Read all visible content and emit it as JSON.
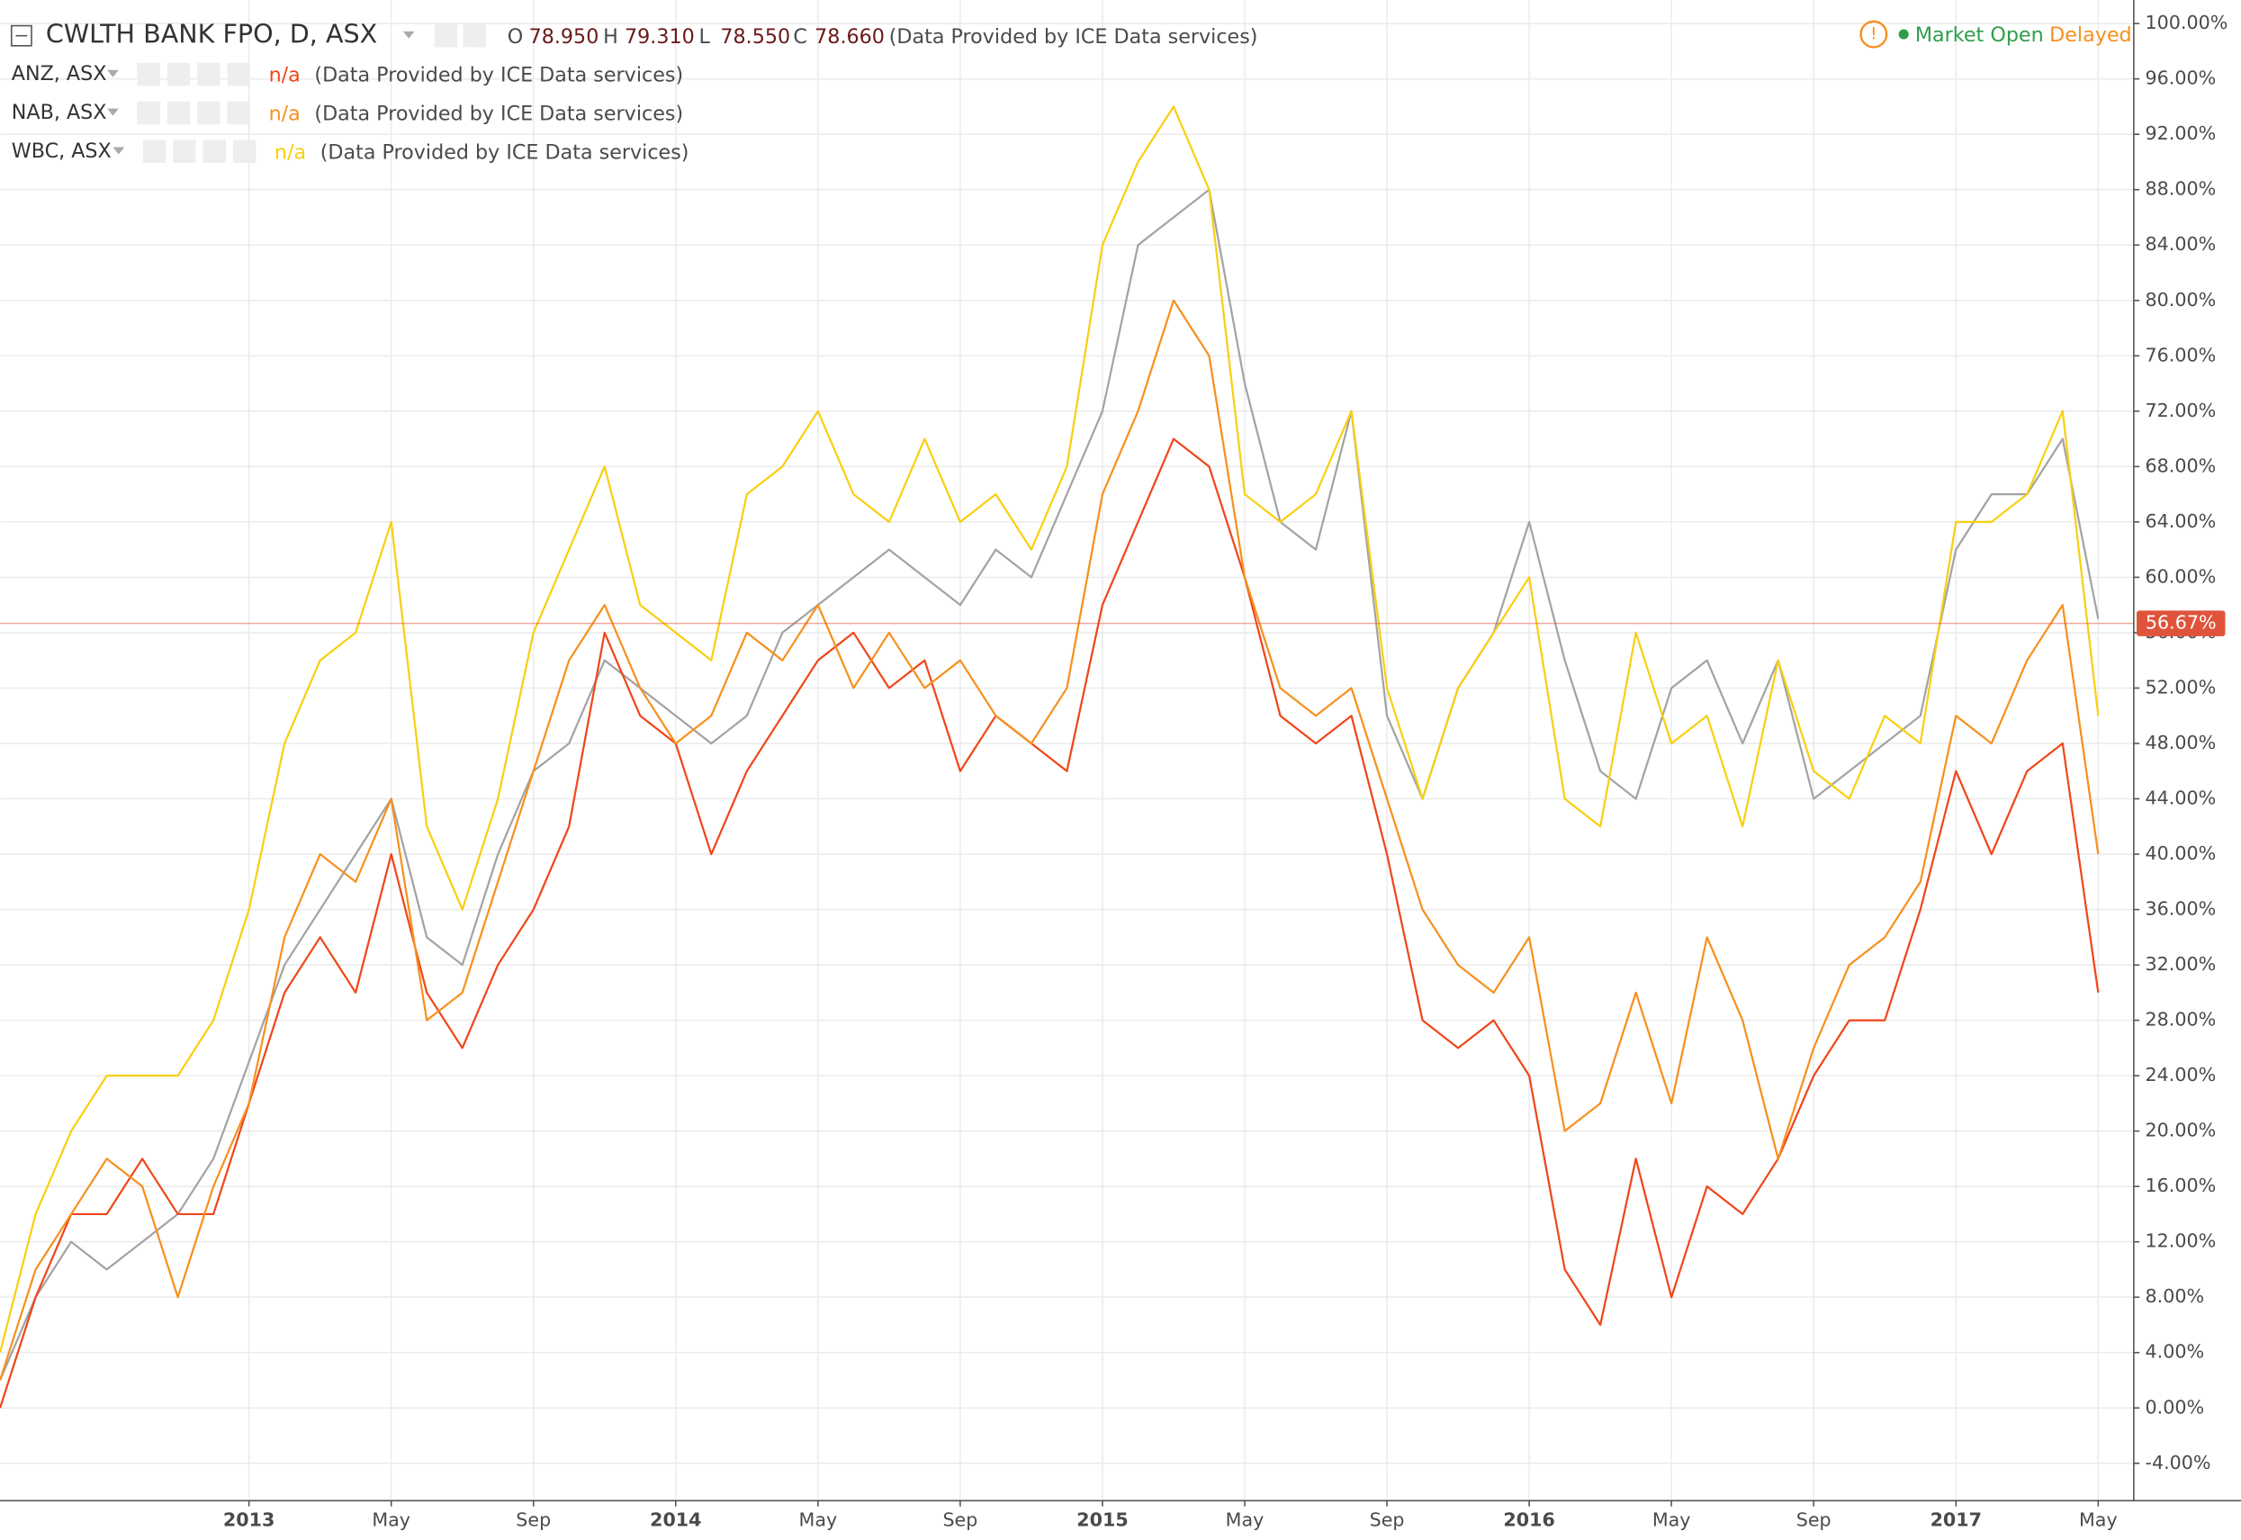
{
  "chart_data": {
    "type": "line",
    "ohlc": [
      {
        "name": "O",
        "value": 78.95,
        "label": "78.950"
      },
      {
        "name": "H",
        "value": 79.31,
        "label": "79.310"
      },
      {
        "name": "L",
        "value": 78.55,
        "label": "78.550"
      },
      {
        "name": "C",
        "value": 78.66,
        "label": "78.660"
      }
    ],
    "market": {
      "icon": "!",
      "state": "Market Open",
      "delay": "Delayed"
    },
    "x": [
      "2012-06",
      "2012-07",
      "2012-08",
      "2012-09",
      "2012-10",
      "2012-11",
      "2012-12",
      "2013-01",
      "2013-02",
      "2013-03",
      "2013-04",
      "2013-05",
      "2013-06",
      "2013-07",
      "2013-08",
      "2013-09",
      "2013-10",
      "2013-11",
      "2013-12",
      "2014-01",
      "2014-02",
      "2014-03",
      "2014-04",
      "2014-05",
      "2014-06",
      "2014-07",
      "2014-08",
      "2014-09",
      "2014-10",
      "2014-11",
      "2014-12",
      "2015-01",
      "2015-02",
      "2015-03",
      "2015-04",
      "2015-05",
      "2015-06",
      "2015-07",
      "2015-08",
      "2015-09",
      "2015-10",
      "2015-11",
      "2015-12",
      "2016-01",
      "2016-02",
      "2016-03",
      "2016-04",
      "2016-05",
      "2016-06",
      "2016-07",
      "2016-08",
      "2016-09",
      "2016-10",
      "2016-11",
      "2016-12",
      "2017-01",
      "2017-02",
      "2017-03",
      "2017-04",
      "2017-05"
    ],
    "series": [
      {
        "name": "CWLTH BANK FPO, D, ASX",
        "source": "(Data Provided by ICE Data services)",
        "color": "#a3a3a3",
        "values": [
          2,
          8,
          12,
          10,
          12,
          14,
          18,
          25,
          32,
          36,
          40,
          44,
          34,
          32,
          40,
          46,
          48,
          54,
          52,
          50,
          48,
          50,
          56,
          58,
          60,
          62,
          60,
          58,
          62,
          60,
          66,
          72,
          84,
          86,
          88,
          74,
          64,
          62,
          72,
          50,
          44,
          52,
          56,
          64,
          54,
          46,
          44,
          52,
          54,
          48,
          54,
          44,
          46,
          48,
          50,
          62,
          66,
          66,
          70,
          57
        ]
      },
      {
        "name": "ANZ, ASX",
        "status": "n/a",
        "source": "(Data Provided by ICE Data services)",
        "color": "#f0461a",
        "values": [
          0,
          8,
          14,
          14,
          18,
          14,
          14,
          22,
          30,
          34,
          30,
          40,
          30,
          26,
          32,
          36,
          42,
          56,
          50,
          48,
          40,
          46,
          50,
          54,
          56,
          52,
          54,
          46,
          50,
          48,
          46,
          58,
          64,
          70,
          68,
          60,
          50,
          48,
          50,
          40,
          28,
          26,
          28,
          24,
          10,
          6,
          18,
          8,
          16,
          14,
          18,
          24,
          28,
          28,
          36,
          46,
          40,
          46,
          48,
          30
        ]
      },
      {
        "name": "NAB, ASX",
        "status": "n/a",
        "source": "(Data Provided by ICE Data services)",
        "color": "#f7901e",
        "values": [
          2,
          10,
          14,
          18,
          16,
          8,
          16,
          22,
          34,
          40,
          38,
          44,
          28,
          30,
          38,
          46,
          54,
          58,
          52,
          48,
          50,
          56,
          54,
          58,
          52,
          56,
          52,
          54,
          50,
          48,
          52,
          66,
          72,
          80,
          76,
          60,
          52,
          50,
          52,
          44,
          36,
          32,
          30,
          34,
          20,
          22,
          30,
          22,
          34,
          28,
          18,
          26,
          32,
          34,
          38,
          50,
          48,
          54,
          58,
          40
        ]
      },
      {
        "name": "WBC, ASX",
        "status": "n/a",
        "source": "(Data Provided by ICE Data services)",
        "color": "#f9cf10",
        "values": [
          4,
          14,
          20,
          24,
          24,
          24,
          28,
          36,
          48,
          54,
          56,
          64,
          42,
          36,
          44,
          56,
          62,
          68,
          58,
          56,
          54,
          66,
          68,
          72,
          66,
          64,
          70,
          64,
          66,
          62,
          68,
          84,
          90,
          94,
          88,
          66,
          64,
          66,
          72,
          52,
          44,
          52,
          56,
          60,
          44,
          42,
          56,
          48,
          50,
          42,
          54,
          46,
          44,
          50,
          48,
          64,
          64,
          66,
          72,
          50
        ]
      }
    ],
    "price_line": {
      "value": 56.67,
      "label": "56.67%",
      "color": "#e0533b"
    },
    "xlim": [
      "2012-06",
      "2017-06"
    ],
    "xticks": [
      {
        "value": "2013-01",
        "label": "2013"
      },
      {
        "value": "2013-05",
        "label": "May"
      },
      {
        "value": "2013-09",
        "label": "Sep"
      },
      {
        "value": "2014-01",
        "label": "2014"
      },
      {
        "value": "2014-05",
        "label": "May"
      },
      {
        "value": "2014-09",
        "label": "Sep"
      },
      {
        "value": "2015-01",
        "label": "2015"
      },
      {
        "value": "2015-05",
        "label": "May"
      },
      {
        "value": "2015-09",
        "label": "Sep"
      },
      {
        "value": "2016-01",
        "label": "2016"
      },
      {
        "value": "2016-05",
        "label": "May"
      },
      {
        "value": "2016-09",
        "label": "Sep"
      },
      {
        "value": "2017-01",
        "label": "2017"
      },
      {
        "value": "2017-05",
        "label": "May"
      }
    ],
    "ylim": [
      -6.7,
      101.7
    ],
    "yticks": [
      {
        "value": -4,
        "label": "-4.00%"
      },
      {
        "value": 0,
        "label": "0.00%"
      },
      {
        "value": 4,
        "label": "4.00%"
      },
      {
        "value": 8,
        "label": "8.00%"
      },
      {
        "value": 12,
        "label": "12.00%"
      },
      {
        "value": 16,
        "label": "16.00%"
      },
      {
        "value": 20,
        "label": "20.00%"
      },
      {
        "value": 24,
        "label": "24.00%"
      },
      {
        "value": 28,
        "label": "28.00%"
      },
      {
        "value": 32,
        "label": "32.00%"
      },
      {
        "value": 36,
        "label": "36.00%"
      },
      {
        "value": 40,
        "label": "40.00%"
      },
      {
        "value": 44,
        "label": "44.00%"
      },
      {
        "value": 48,
        "label": "48.00%"
      },
      {
        "value": 52,
        "label": "52.00%"
      },
      {
        "value": 56,
        "label": "56.00%"
      },
      {
        "value": 60,
        "label": "60.00%"
      },
      {
        "value": 64,
        "label": "64.00%"
      },
      {
        "value": 68,
        "label": "68.00%"
      },
      {
        "value": 72,
        "label": "72.00%"
      },
      {
        "value": 76,
        "label": "76.00%"
      },
      {
        "value": 80,
        "label": "80.00%"
      },
      {
        "value": 84,
        "label": "84.00%"
      },
      {
        "value": 88,
        "label": "88.00%"
      },
      {
        "value": 92,
        "label": "92.00%"
      },
      {
        "value": 96,
        "label": "96.00%"
      },
      {
        "value": 100,
        "label": "100.00%"
      }
    ],
    "grid": true
  }
}
